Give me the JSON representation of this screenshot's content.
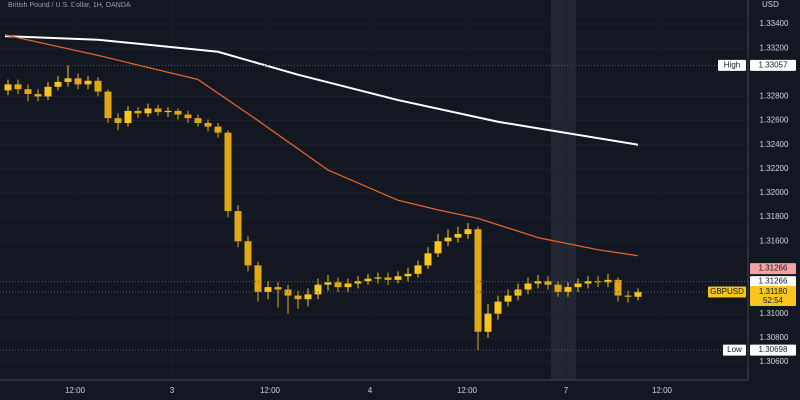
{
  "chart_data": {
    "type": "candlestick",
    "title": "British Pound / U.S. Dollar, 1H, OANDA",
    "currency": "USD",
    "x": [
      0,
      1,
      2,
      3,
      4,
      5,
      6,
      7,
      8,
      9,
      10,
      11,
      12,
      13,
      14,
      15,
      16,
      17,
      18,
      19,
      20,
      21,
      22,
      23,
      24,
      25,
      26,
      27,
      28,
      29,
      30,
      31,
      32,
      33,
      34,
      35,
      36,
      37,
      38,
      39,
      40,
      41,
      42,
      43,
      44,
      45,
      46,
      47,
      48,
      49,
      50,
      51,
      52,
      53,
      54,
      55,
      56,
      57,
      58,
      59,
      60,
      61,
      62,
      63
    ],
    "open": [
      1.3285,
      1.329,
      1.3286,
      1.3282,
      1.328,
      1.3288,
      1.3292,
      1.3295,
      1.329,
      1.3293,
      1.3284,
      1.3262,
      1.3258,
      1.3268,
      1.3266,
      1.327,
      1.3267,
      1.3268,
      1.3265,
      1.3262,
      1.3258,
      1.3255,
      1.325,
      1.3185,
      1.316,
      1.314,
      1.3118,
      1.3122,
      1.312,
      1.3115,
      1.3112,
      1.3116,
      1.3124,
      1.3126,
      1.3122,
      1.3125,
      1.3127,
      1.3129,
      1.313,
      1.3128,
      1.3131,
      1.3133,
      1.314,
      1.315,
      1.316,
      1.3163,
      1.3166,
      1.317,
      1.3085,
      1.31,
      1.311,
      1.3115,
      1.312,
      1.3125,
      1.3127,
      1.3124,
      1.3118,
      1.3122,
      1.3125,
      1.3127,
      1.3126,
      1.3128,
      1.3115,
      1.3114
    ],
    "high": [
      1.3294,
      1.3294,
      1.329,
      1.3286,
      1.3292,
      1.3297,
      1.33057,
      1.3299,
      1.3297,
      1.3296,
      1.3286,
      1.3266,
      1.3272,
      1.3271,
      1.3274,
      1.3273,
      1.3271,
      1.327,
      1.3268,
      1.3265,
      1.3261,
      1.3258,
      1.3252,
      1.319,
      1.3164,
      1.3143,
      1.3127,
      1.3126,
      1.3124,
      1.3119,
      1.3121,
      1.3129,
      1.3132,
      1.313,
      1.3129,
      1.3131,
      1.3133,
      1.3134,
      1.3134,
      1.3135,
      1.3138,
      1.3144,
      1.3155,
      1.3166,
      1.317,
      1.3172,
      1.3175,
      1.3172,
      1.3108,
      1.3115,
      1.312,
      1.3125,
      1.313,
      1.3132,
      1.3131,
      1.3127,
      1.3126,
      1.3129,
      1.3131,
      1.3131,
      1.3133,
      1.313,
      1.3119,
      1.3121
    ],
    "low": [
      1.3281,
      1.3282,
      1.3276,
      1.3276,
      1.3277,
      1.3285,
      1.3288,
      1.3286,
      1.3286,
      1.328,
      1.3258,
      1.3252,
      1.3255,
      1.3262,
      1.3263,
      1.3264,
      1.3263,
      1.3261,
      1.3258,
      1.3255,
      1.3251,
      1.3246,
      1.318,
      1.3155,
      1.3135,
      1.311,
      1.3112,
      1.3105,
      1.31,
      1.3104,
      1.3106,
      1.3112,
      1.3119,
      1.3118,
      1.3118,
      1.3121,
      1.3124,
      1.3125,
      1.3124,
      1.3125,
      1.3127,
      1.313,
      1.3137,
      1.3147,
      1.3156,
      1.3159,
      1.3162,
      1.30698,
      1.308,
      1.3095,
      1.3106,
      1.3111,
      1.3116,
      1.3121,
      1.312,
      1.3114,
      1.3114,
      1.3118,
      1.3121,
      1.3122,
      1.3122,
      1.311,
      1.3109,
      1.3111
    ],
    "close": [
      1.329,
      1.3286,
      1.3282,
      1.328,
      1.3288,
      1.3292,
      1.3295,
      1.329,
      1.3293,
      1.3284,
      1.3262,
      1.3258,
      1.3268,
      1.3266,
      1.327,
      1.3267,
      1.3268,
      1.3265,
      1.3262,
      1.3258,
      1.3255,
      1.325,
      1.3185,
      1.316,
      1.314,
      1.3118,
      1.3122,
      1.312,
      1.3115,
      1.3112,
      1.3116,
      1.3124,
      1.3126,
      1.3122,
      1.3125,
      1.3127,
      1.3129,
      1.313,
      1.3128,
      1.3131,
      1.3133,
      1.314,
      1.315,
      1.316,
      1.3163,
      1.3166,
      1.317,
      1.3085,
      1.31,
      1.311,
      1.3115,
      1.312,
      1.3125,
      1.3127,
      1.3124,
      1.3118,
      1.3122,
      1.3125,
      1.3127,
      1.3126,
      1.3128,
      1.3115,
      1.3114,
      1.3118
    ],
    "up_color": "#f7c51e",
    "down_color": "#e0a812",
    "lines": [
      {
        "color": "#ffffff",
        "x": [
          -0.3,
          9,
          21,
          29,
          39,
          49,
          63
        ],
        "values": [
          1.333,
          1.3327,
          1.3317,
          1.3298,
          1.3277,
          1.3259,
          1.324
        ]
      },
      {
        "color": "#e0622b",
        "x": [
          -0.3,
          9,
          19,
          25,
          32,
          39,
          43,
          47,
          53,
          59,
          63
        ],
        "values": [
          1.3331,
          1.3314,
          1.3294,
          1.326,
          1.3219,
          1.3194,
          1.3186,
          1.3179,
          1.3163,
          1.3153,
          1.3148
        ]
      }
    ],
    "xlim": [
      -0.8,
      74
    ],
    "ylim": [
      1.30467,
      1.33599
    ],
    "xticks": [
      {
        "value": 6.7,
        "label": "12:00"
      },
      {
        "value": 16.4,
        "label": "3"
      },
      {
        "value": 26.2,
        "label": "12:00"
      },
      {
        "value": 36.2,
        "label": "4"
      },
      {
        "value": 45.9,
        "label": "12:00"
      },
      {
        "value": 55.8,
        "label": "7"
      },
      {
        "value": 65.4,
        "label": "12:00"
      }
    ],
    "yticks": [
      {
        "value": 1.334,
        "label": "1.33400"
      },
      {
        "value": 1.332,
        "label": "1.33200"
      },
      {
        "value": 1.328,
        "label": "1.32800"
      },
      {
        "value": 1.326,
        "label": "1.32600"
      },
      {
        "value": 1.324,
        "label": "1.32400"
      },
      {
        "value": 1.322,
        "label": "1.32200"
      },
      {
        "value": 1.32,
        "label": "1.32000"
      },
      {
        "value": 1.318,
        "label": "1.31800"
      },
      {
        "value": 1.316,
        "label": "1.31600"
      },
      {
        "value": 1.31,
        "label": "1.31000"
      },
      {
        "value": 1.308,
        "label": "1.30800"
      },
      {
        "value": 1.306,
        "label": "1.30600"
      }
    ],
    "price_tags": [
      {
        "name": "High",
        "value": 1.33057,
        "color": "#ffffff"
      },
      {
        "value": 1.31266,
        "color": "#f4a3a3",
        "offset": true
      },
      {
        "value": 1.31266,
        "color": "#ffffff"
      },
      {
        "name": "GBPUSD",
        "value": 1.3118,
        "value_label": "1.31180",
        "color": "#f7c51e",
        "countdown": "52:54"
      },
      {
        "name": "Low",
        "value": 1.30698,
        "color": "#ffffff"
      }
    ]
  }
}
